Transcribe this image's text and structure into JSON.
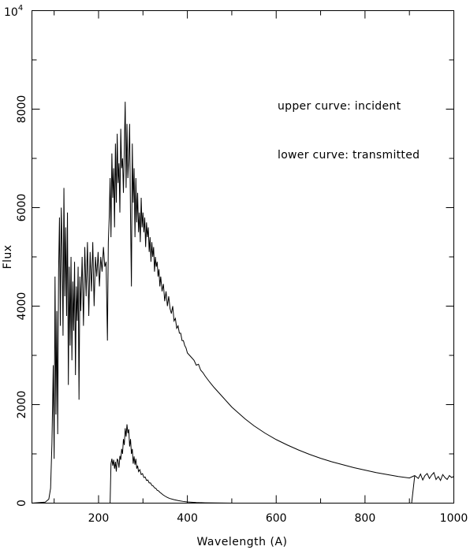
{
  "chart_data": {
    "type": "line",
    "xlabel": "Wavelength (A)",
    "ylabel": "Flux",
    "xlim": [
      50,
      1000
    ],
    "ylim": [
      0,
      10000
    ],
    "x_ticks": [
      200,
      400,
      600,
      800,
      1000
    ],
    "y_ticks": [
      0,
      2000,
      4000,
      6000,
      8000
    ],
    "y_top_label": "10",
    "y_top_exponent": "4",
    "grid": false,
    "annotations": [
      "upper curve: incident",
      "lower curve: transmitted"
    ],
    "series": [
      {
        "x": [
          50,
          80,
          88,
          92,
          95,
          98,
          100,
          102,
          104,
          106,
          108,
          110,
          112,
          114,
          116,
          118,
          120,
          122,
          124,
          126,
          128,
          130,
          132,
          134,
          136,
          138,
          140,
          142,
          144,
          146,
          148,
          150,
          152,
          154,
          156,
          158,
          160,
          163,
          166,
          169,
          172,
          175,
          178,
          181,
          184,
          187,
          190,
          193,
          196,
          199,
          202,
          205,
          208,
          211,
          214,
          217,
          220,
          222,
          224,
          226,
          228,
          230,
          232,
          234,
          236,
          238,
          240,
          242,
          244,
          246,
          248,
          250,
          252,
          254,
          256,
          258,
          260,
          262,
          264,
          266,
          268,
          270,
          272,
          274,
          276,
          278,
          280,
          282,
          284,
          286,
          288,
          290,
          292,
          294,
          296,
          298,
          300,
          302,
          304,
          306,
          308,
          310,
          312,
          314,
          316,
          318,
          320,
          322,
          324,
          326,
          328,
          330,
          332,
          334,
          336,
          338,
          340,
          343,
          346,
          349,
          352,
          355,
          358,
          361,
          364,
          367,
          370,
          373,
          376,
          379,
          382,
          385,
          388,
          391,
          394,
          397,
          400,
          405,
          410,
          415,
          420,
          425,
          430,
          435,
          440,
          445,
          450,
          460,
          470,
          480,
          490,
          500,
          510,
          520,
          530,
          540,
          550,
          575,
          600,
          625,
          650,
          675,
          700,
          725,
          750,
          775,
          800,
          825,
          850,
          875,
          900,
          912
        ],
        "y": [
          0,
          20,
          80,
          300,
          1200,
          2800,
          900,
          4600,
          1800,
          3900,
          1400,
          4700,
          5800,
          3600,
          6000,
          5200,
          3400,
          6400,
          4200,
          5600,
          3800,
          5900,
          2400,
          4800,
          3200,
          5000,
          2900,
          4500,
          3500,
          4900,
          2600,
          4400,
          3700,
          4800,
          2100,
          4600,
          3900,
          5000,
          3600,
          5200,
          4200,
          5300,
          3800,
          5100,
          4300,
          5300,
          4000,
          5000,
          4600,
          5100,
          4400,
          5000,
          4700,
          5200,
          4800,
          4900,
          3300,
          5300,
          5800,
          6600,
          5400,
          7100,
          6200,
          6800,
          5600,
          7300,
          6100,
          7500,
          6500,
          6900,
          5900,
          7600,
          6800,
          7000,
          6300,
          7200,
          8150,
          6400,
          7700,
          6600,
          7000,
          7700,
          5800,
          4400,
          7300,
          6100,
          6800,
          5400,
          6600,
          5700,
          6300,
          5500,
          5900,
          5300,
          6200,
          5600,
          5900,
          5500,
          5800,
          5200,
          5700,
          5400,
          5600,
          5100,
          5400,
          4900,
          5300,
          5000,
          5200,
          4700,
          5000,
          4800,
          4900,
          4600,
          4750,
          4400,
          4600,
          4300,
          4450,
          4100,
          4300,
          4000,
          4200,
          3950,
          3850,
          4000,
          3700,
          3750,
          3550,
          3600,
          3450,
          3450,
          3300,
          3300,
          3200,
          3150,
          3050,
          3000,
          2950,
          2900,
          2800,
          2820,
          2700,
          2650,
          2580,
          2520,
          2460,
          2350,
          2250,
          2150,
          2050,
          1950,
          1870,
          1790,
          1710,
          1640,
          1570,
          1420,
          1290,
          1180,
          1080,
          990,
          910,
          840,
          780,
          720,
          670,
          620,
          580,
          540,
          510,
          560
        ]
      },
      {
        "x": [
          50,
          226,
          228,
          230,
          232,
          234,
          236,
          238,
          240,
          242,
          244,
          246,
          248,
          250,
          252,
          254,
          256,
          258,
          260,
          262,
          264,
          266,
          268,
          270,
          272,
          274,
          276,
          278,
          280,
          282,
          284,
          286,
          288,
          290,
          293,
          296,
          299,
          302,
          305,
          308,
          311,
          314,
          317,
          320,
          323,
          326,
          329,
          332,
          335,
          338,
          341,
          345,
          350,
          355,
          360,
          370,
          380,
          390,
          400,
          420,
          440,
          460,
          500,
          600,
          700,
          800,
          905
        ],
        "y": [
          0,
          0,
          800,
          900,
          760,
          880,
          700,
          840,
          640,
          900,
          860,
          720,
          960,
          880,
          1100,
          1000,
          1300,
          1180,
          1520,
          1350,
          1600,
          1420,
          1500,
          1150,
          1300,
          1000,
          1100,
          800,
          950,
          780,
          900,
          700,
          760,
          640,
          680,
          580,
          600,
          520,
          530,
          460,
          470,
          410,
          410,
          360,
          350,
          310,
          300,
          260,
          250,
          220,
          200,
          170,
          140,
          115,
          95,
          70,
          50,
          35,
          25,
          12,
          6,
          3,
          1,
          0,
          0,
          0,
          0
        ]
      },
      {
        "x": [
          912,
          920,
          925,
          930,
          935,
          940,
          945,
          950,
          955,
          960,
          965,
          970,
          975,
          980,
          985,
          990,
          995,
          1000
        ],
        "y": [
          560,
          500,
          590,
          470,
          560,
          600,
          500,
          570,
          620,
          480,
          540,
          460,
          580,
          520,
          480,
          560,
          520,
          540
        ]
      }
    ]
  }
}
